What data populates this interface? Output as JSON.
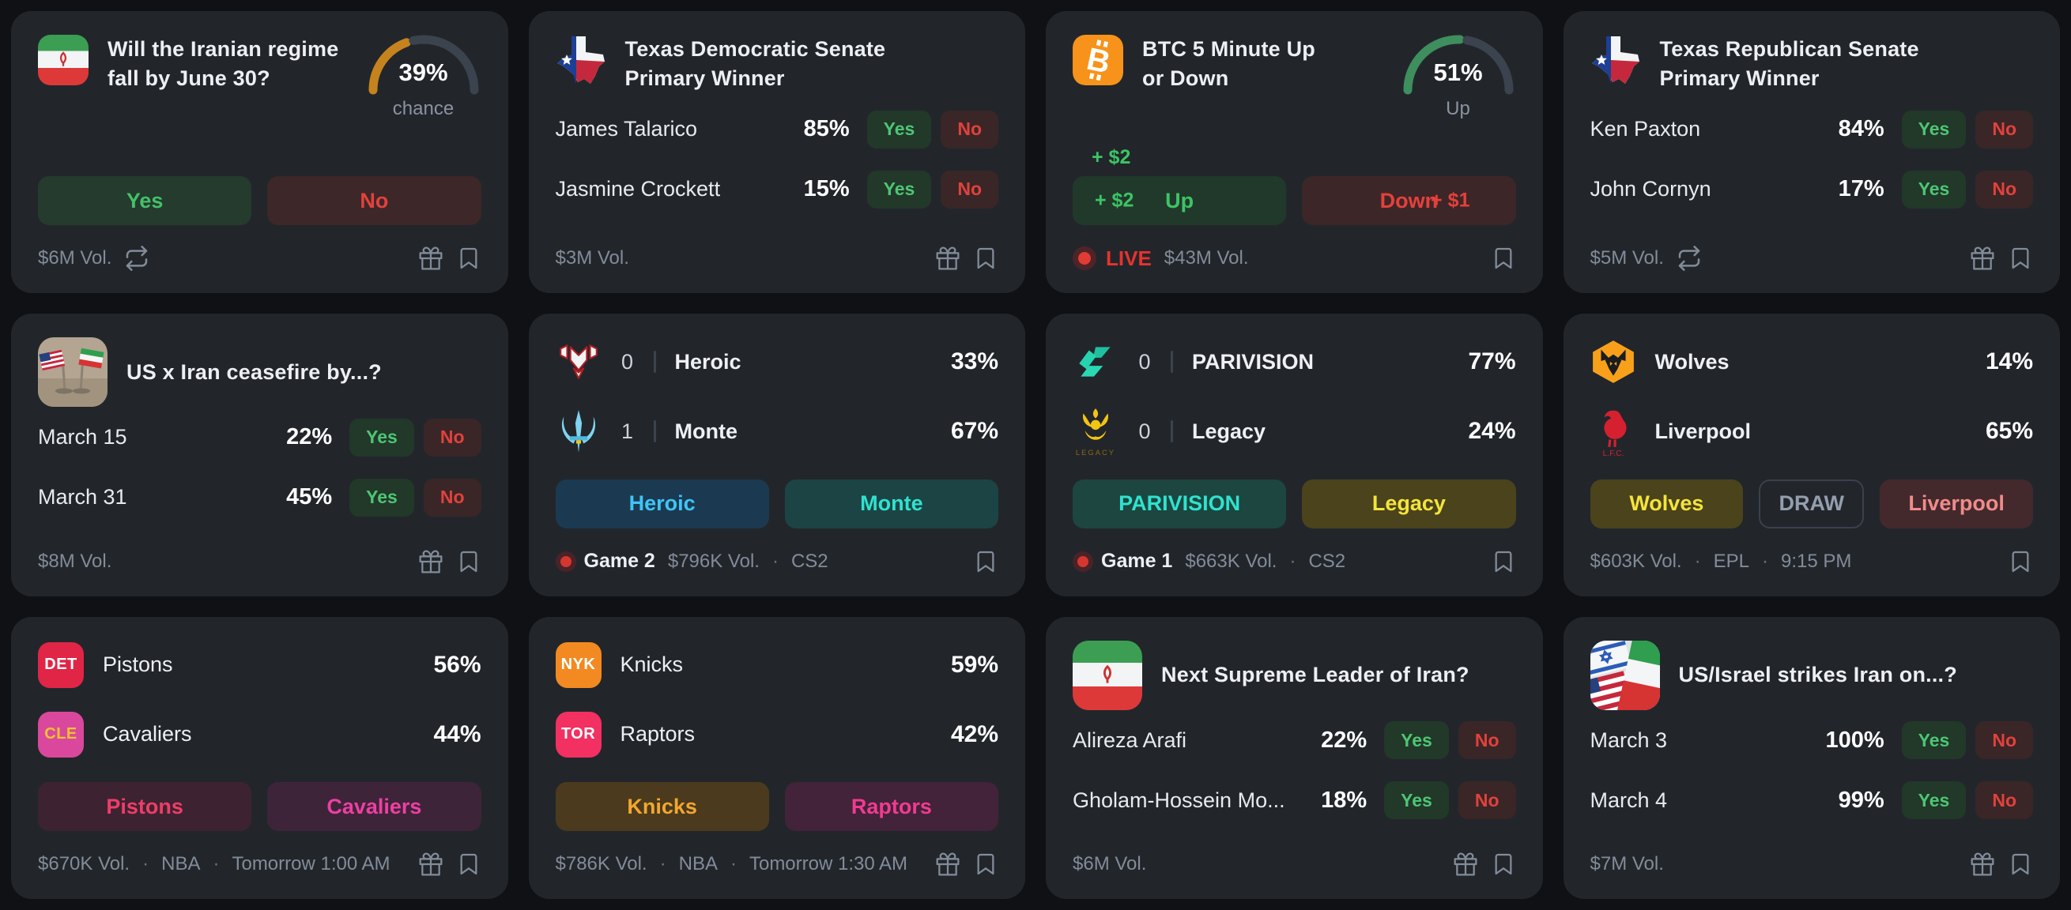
{
  "labels": {
    "yes": "Yes",
    "no": "No"
  },
  "theme": {
    "page_bg": "#0f1114",
    "card_bg": "#22262b",
    "yes_green": "#4cc674",
    "no_red": "#e2413c",
    "live_red": "#e8322d",
    "gauge_track": "#3a434e",
    "chance_amber": "#c5831e",
    "up_green": "#3e8e5e"
  },
  "cards": [
    {
      "id": "iran-regime",
      "type": "binary-gauge",
      "icon": "iran-flag-icon",
      "title": "Will the Iranian regime fall by June 30?",
      "gauge": {
        "percent": 39,
        "value_text": "39%",
        "label": "chance",
        "color": "#c5831e"
      },
      "footer": {
        "volume": "$6M Vol.",
        "icons": [
          "repeat-icon",
          "gift-icon",
          "bookmark-icon"
        ]
      }
    },
    {
      "id": "tx-dem-senate",
      "type": "multi",
      "icon": "texas-flag-icon",
      "title": "Texas Democratic Senate Primary Winner",
      "outcomes": [
        {
          "name": "James Talarico",
          "percent": "85%"
        },
        {
          "name": "Jasmine Crockett",
          "percent": "15%"
        }
      ],
      "footer": {
        "volume": "$3M Vol.",
        "icons": [
          "gift-icon",
          "bookmark-icon"
        ]
      }
    },
    {
      "id": "btc-5min",
      "type": "binary-gauge",
      "icon": "bitcoin-icon",
      "title": "BTC 5 Minute Up or Down",
      "gauge": {
        "percent": 51,
        "value_text": "51%",
        "label": "Up",
        "color": "#3e8e5e"
      },
      "up_label": "Up",
      "down_label": "Down",
      "up_delta_float": "+ $2",
      "up_delta": "+ $2",
      "down_delta": "+ $1",
      "footer": {
        "live": "LIVE",
        "volume": "$43M Vol.",
        "icons": [
          "bookmark-icon"
        ]
      }
    },
    {
      "id": "tx-rep-senate",
      "type": "multi",
      "icon": "texas-flag-icon",
      "title": "Texas Republican Senate Primary Winner",
      "outcomes": [
        {
          "name": "Ken Paxton",
          "percent": "84%"
        },
        {
          "name": "John Cornyn",
          "percent": "17%"
        }
      ],
      "footer": {
        "volume": "$5M Vol.",
        "icons": [
          "repeat-icon",
          "gift-icon",
          "bookmark-icon"
        ]
      }
    },
    {
      "id": "us-iran-ceasefire",
      "type": "multi",
      "icon": "us-iran-flags-photo",
      "title": "US x Iran ceasefire by...?",
      "outcomes": [
        {
          "name": "March 15",
          "percent": "22%"
        },
        {
          "name": "March 31",
          "percent": "45%"
        }
      ],
      "footer": {
        "volume": "$8M Vol.",
        "icons": [
          "gift-icon",
          "bookmark-icon"
        ]
      }
    },
    {
      "id": "heroic-monte",
      "type": "match",
      "teams": [
        {
          "logo": "heroic-logo",
          "score": "0",
          "name": "Heroic",
          "percent": "33%"
        },
        {
          "logo": "monte-logo",
          "score": "1",
          "name": "Monte",
          "percent": "67%"
        }
      ],
      "buttons": [
        {
          "label": "Heroic"
        },
        {
          "label": "Monte"
        }
      ],
      "footer": {
        "game": "Game 2",
        "volume": "$796K Vol.",
        "league": "CS2",
        "icons": [
          "bookmark-icon"
        ]
      }
    },
    {
      "id": "parivision-legacy",
      "type": "match",
      "teams": [
        {
          "logo": "parivision-logo",
          "score": "0",
          "name": "PARIVISION",
          "percent": "77%"
        },
        {
          "logo": "legacy-logo",
          "score": "0",
          "name": "Legacy",
          "percent": "24%"
        }
      ],
      "buttons": [
        {
          "label": "PARIVISION"
        },
        {
          "label": "Legacy"
        }
      ],
      "footer": {
        "game": "Game 1",
        "volume": "$663K Vol.",
        "league": "CS2",
        "icons": [
          "bookmark-icon"
        ]
      }
    },
    {
      "id": "wolves-liverpool",
      "type": "match",
      "teams": [
        {
          "logo": "wolves-logo",
          "name": "Wolves",
          "percent": "14%"
        },
        {
          "logo": "liverpool-logo",
          "name": "Liverpool",
          "percent": "65%"
        }
      ],
      "buttons": [
        {
          "label": "Wolves"
        },
        {
          "label": "DRAW"
        },
        {
          "label": "Liverpool"
        }
      ],
      "footer": {
        "volume": "$603K Vol.",
        "league": "EPL",
        "time": "9:15 PM",
        "icons": [
          "bookmark-icon"
        ]
      }
    },
    {
      "id": "pistons-cavaliers",
      "type": "match",
      "teams": [
        {
          "badge": "DET",
          "name": "Pistons",
          "percent": "56%"
        },
        {
          "badge": "CLE",
          "name": "Cavaliers",
          "percent": "44%"
        }
      ],
      "buttons": [
        {
          "label": "Pistons"
        },
        {
          "label": "Cavaliers"
        }
      ],
      "footer": {
        "volume": "$670K Vol.",
        "league": "NBA",
        "time": "Tomorrow 1:00 AM",
        "icons": [
          "gift-icon",
          "bookmark-icon"
        ]
      }
    },
    {
      "id": "knicks-raptors",
      "type": "match",
      "teams": [
        {
          "badge": "NYK",
          "name": "Knicks",
          "percent": "59%"
        },
        {
          "badge": "TOR",
          "name": "Raptors",
          "percent": "42%"
        }
      ],
      "buttons": [
        {
          "label": "Knicks"
        },
        {
          "label": "Raptors"
        }
      ],
      "footer": {
        "volume": "$786K Vol.",
        "league": "NBA",
        "time": "Tomorrow 1:30 AM",
        "icons": [
          "gift-icon",
          "bookmark-icon"
        ]
      }
    },
    {
      "id": "iran-supreme-leader",
      "type": "multi",
      "icon": "iran-flag-icon",
      "title": "Next Supreme Leader of Iran?",
      "outcomes": [
        {
          "name": "Alireza Arafi",
          "percent": "22%"
        },
        {
          "name": "Gholam-Hossein Mo...",
          "percent": "18%"
        }
      ],
      "footer": {
        "volume": "$6M Vol.",
        "icons": [
          "gift-icon",
          "bookmark-icon"
        ]
      }
    },
    {
      "id": "us-israel-strikes",
      "type": "multi",
      "icon": "us-israel-iran-flags-icon",
      "title": "US/Israel strikes Iran on...?",
      "outcomes": [
        {
          "name": "March 3",
          "percent": "100%"
        },
        {
          "name": "March 4",
          "percent": "99%"
        }
      ],
      "footer": {
        "volume": "$7M Vol.",
        "icons": [
          "gift-icon",
          "bookmark-icon"
        ]
      }
    }
  ]
}
